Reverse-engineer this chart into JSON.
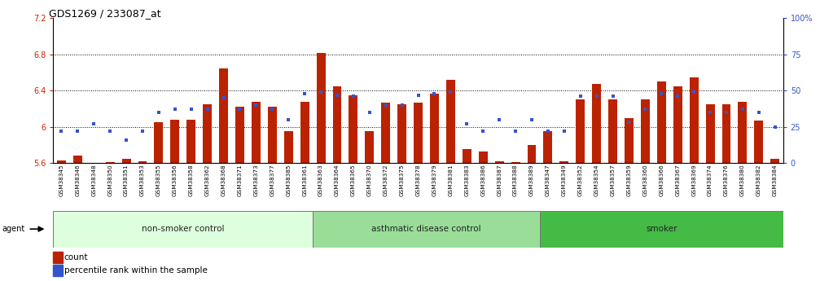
{
  "title": "GDS1269 / 233087_at",
  "ylim_left": [
    5.6,
    7.2
  ],
  "ylim_right": [
    0,
    100
  ],
  "yticks_left": [
    5.6,
    6.0,
    6.4,
    6.8,
    7.2
  ],
  "yticks_right": [
    0,
    25,
    50,
    75,
    100
  ],
  "ytick_labels_left": [
    "5.6",
    "6",
    "6.4",
    "6.8",
    "7.2"
  ],
  "ytick_labels_right": [
    "0",
    "25",
    "50",
    "75",
    "100%"
  ],
  "bar_color": "#BB2200",
  "dot_color": "#3355CC",
  "groups": [
    {
      "label": "non-smoker control",
      "color": "#DDFFDD",
      "start": 0,
      "end": 16
    },
    {
      "label": "asthmatic disease control",
      "color": "#99DD99",
      "start": 16,
      "end": 30
    },
    {
      "label": "smoker",
      "color": "#44BB44",
      "start": 30,
      "end": 45
    }
  ],
  "samples": [
    "GSM38345",
    "GSM38346",
    "GSM38348",
    "GSM38350",
    "GSM38351",
    "GSM38353",
    "GSM38355",
    "GSM38356",
    "GSM38358",
    "GSM38362",
    "GSM38368",
    "GSM38371",
    "GSM38373",
    "GSM38377",
    "GSM38385",
    "GSM38361",
    "GSM38363",
    "GSM38364",
    "GSM38365",
    "GSM38370",
    "GSM38372",
    "GSM38375",
    "GSM38378",
    "GSM38379",
    "GSM38381",
    "GSM38383",
    "GSM38386",
    "GSM38387",
    "GSM38388",
    "GSM38389",
    "GSM38347",
    "GSM38349",
    "GSM38352",
    "GSM38354",
    "GSM38357",
    "GSM38359",
    "GSM38360",
    "GSM38366",
    "GSM38367",
    "GSM38369",
    "GSM38374",
    "GSM38376",
    "GSM38380",
    "GSM38382",
    "GSM38384"
  ],
  "bar_heights": [
    5.63,
    5.68,
    5.6,
    5.61,
    5.65,
    5.62,
    6.05,
    6.08,
    6.08,
    6.25,
    6.65,
    6.22,
    6.28,
    6.22,
    5.95,
    6.28,
    6.82,
    6.45,
    6.35,
    5.95,
    6.27,
    6.25,
    6.27,
    6.37,
    6.52,
    5.75,
    5.73,
    5.62,
    5.61,
    5.8,
    5.95,
    5.62,
    6.3,
    6.47,
    6.3,
    6.1,
    6.3,
    6.5,
    6.45,
    6.55,
    6.25,
    6.25,
    6.28,
    6.07,
    5.65
  ],
  "dot_heights_pct": [
    22,
    22,
    27,
    22,
    16,
    22,
    35,
    37,
    37,
    37,
    45,
    37,
    40,
    37,
    30,
    48,
    49,
    47,
    46,
    35,
    40,
    40,
    47,
    48,
    49,
    27,
    22,
    30,
    22,
    30,
    22,
    22,
    46,
    46,
    46,
    28,
    37,
    48,
    46,
    49,
    35,
    35,
    37,
    35,
    25
  ],
  "agent_label": "agent",
  "legend_bar_label": "count",
  "legend_dot_label": "percentile rank within the sample",
  "axis_label_color_left": "#CC2200",
  "axis_label_color_right": "#2255CC"
}
